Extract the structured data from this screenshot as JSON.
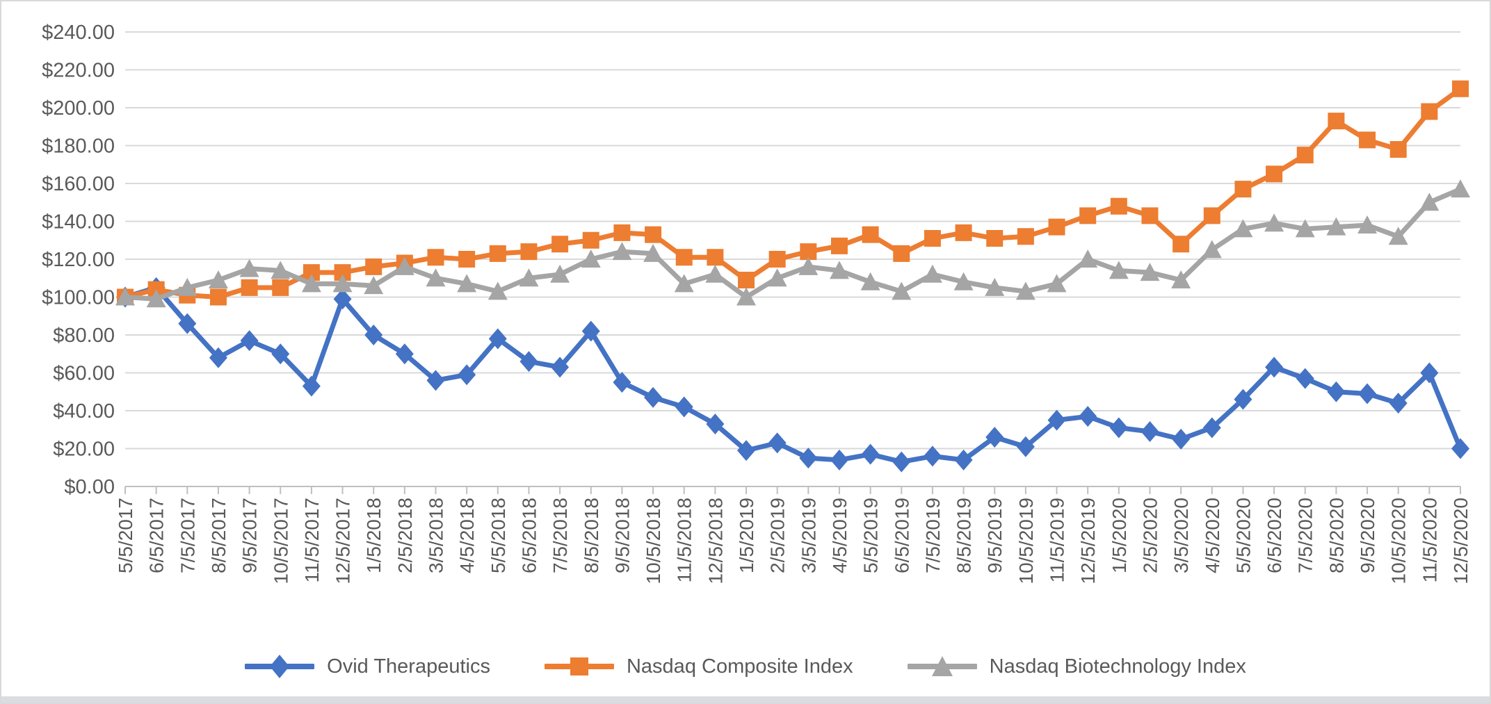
{
  "chart_data": {
    "type": "line",
    "title": "",
    "xlabel": "",
    "ylabel": "",
    "grid": true,
    "legend_position": "bottom",
    "ylim": [
      0,
      240
    ],
    "y_axis": {
      "min": 0,
      "max": 240,
      "step": 20,
      "tick_labels": [
        "$0.00",
        "$20.00",
        "$40.00",
        "$60.00",
        "$80.00",
        "$100.00",
        "$120.00",
        "$140.00",
        "$160.00",
        "$180.00",
        "$200.00",
        "$220.00",
        "$240.00"
      ]
    },
    "x_labels": [
      "5/5/2017",
      "6/5/2017",
      "7/5/2017",
      "8/5/2017",
      "9/5/2017",
      "10/5/2017",
      "11/5/2017",
      "12/5/2017",
      "1/5/2018",
      "2/5/2018",
      "3/5/2018",
      "4/5/2018",
      "5/5/2018",
      "6/5/2018",
      "7/5/2018",
      "8/5/2018",
      "9/5/2018",
      "10/5/2018",
      "11/5/2018",
      "12/5/2018",
      "1/5/2019",
      "2/5/2019",
      "3/5/2019",
      "4/5/2019",
      "5/5/2019",
      "6/5/2019",
      "7/5/2019",
      "8/5/2019",
      "9/5/2019",
      "10/5/2019",
      "11/5/2019",
      "12/5/2019",
      "1/5/2020",
      "2/5/2020",
      "3/5/2020",
      "4/5/2020",
      "5/5/2020",
      "6/5/2020",
      "7/5/2020",
      "8/5/2020",
      "9/5/2020",
      "10/5/2020",
      "11/5/2020",
      "12/5/2020"
    ],
    "series": [
      {
        "name": "Ovid Therapeutics",
        "color": "#4472C4",
        "marker": "diamond",
        "values": [
          100,
          105,
          86,
          68,
          77,
          70,
          53,
          99,
          80,
          70,
          56,
          59,
          78,
          66,
          63,
          82,
          55,
          47,
          42,
          33,
          19,
          23,
          15,
          14,
          17,
          13,
          16,
          14,
          26,
          21,
          35,
          37,
          31,
          29,
          25,
          31,
          46,
          63,
          57,
          50,
          49,
          44,
          60,
          20
        ]
      },
      {
        "name": "Nasdaq Composite Index",
        "color": "#ED7D31",
        "marker": "square",
        "values": [
          100,
          104,
          101,
          100,
          105,
          105,
          113,
          113,
          116,
          118,
          121,
          120,
          123,
          124,
          128,
          130,
          134,
          133,
          121,
          121,
          109,
          120,
          124,
          127,
          133,
          123,
          131,
          134,
          131,
          132,
          137,
          143,
          148,
          143,
          128,
          143,
          157,
          165,
          175,
          193,
          183,
          178,
          198,
          210
        ]
      },
      {
        "name": "Nasdaq Biotechnology Index",
        "color": "#A5A5A5",
        "marker": "triangle",
        "values": [
          100,
          99,
          105,
          109,
          115,
          114,
          107,
          107,
          106,
          116,
          110,
          107,
          103,
          110,
          112,
          120,
          124,
          123,
          107,
          112,
          100,
          110,
          116,
          114,
          108,
          103,
          112,
          108,
          105,
          103,
          107,
          120,
          114,
          113,
          109,
          125,
          136,
          139,
          136,
          137,
          138,
          132,
          150,
          157
        ]
      }
    ],
    "style": {
      "gridline_color": "#D9D9D9",
      "axis_line_color": "#BFBFBF",
      "text_color": "#595959",
      "background": "#FFFFFF"
    }
  }
}
